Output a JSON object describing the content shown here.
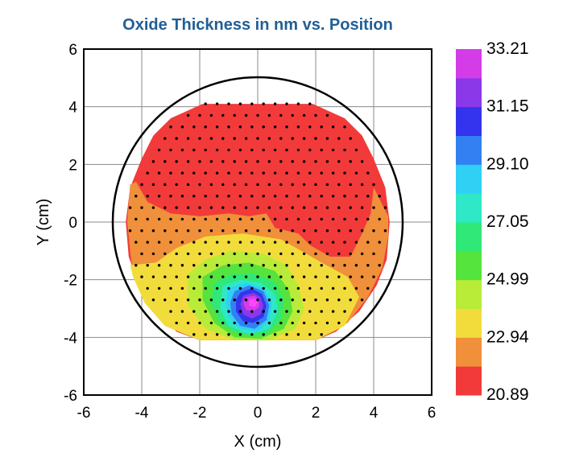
{
  "chart_data": {
    "type": "heatmap",
    "title": "Oxide Thickness in nm vs. Position",
    "xlabel": "X (cm)",
    "ylabel": "Y (cm)",
    "xlim": [
      -6,
      6
    ],
    "ylim": [
      -6,
      6
    ],
    "x_ticks": [
      "-6",
      "-4",
      "-2",
      "0",
      "2",
      "4",
      "6"
    ],
    "y_ticks": [
      "6",
      "4",
      "2",
      "0",
      "-2",
      "-4",
      "-6"
    ],
    "grid": true,
    "wafer_circle_radius": 5,
    "colorbar": {
      "labels": [
        "33.21",
        "31.15",
        "29.10",
        "27.05",
        "24.99",
        "22.94",
        "20.89"
      ],
      "levels": [
        20.89,
        21.92,
        22.94,
        23.97,
        24.99,
        26.02,
        27.05,
        28.07,
        29.1,
        30.12,
        31.15,
        32.18,
        33.21
      ],
      "colors": [
        "#f23a3a",
        "#f0903a",
        "#f2dc3c",
        "#b8ec38",
        "#55e33e",
        "#2fe878",
        "#2ee8c8",
        "#2fd0f4",
        "#3380f2",
        "#3434ee",
        "#8a38e8",
        "#d43ce8"
      ],
      "placement": "right"
    },
    "contours": [
      {
        "level": 21.92,
        "color": "#f0903a",
        "points": [
          [
            -4.5,
            0
          ],
          [
            -4.4,
            -1
          ],
          [
            -4.3,
            -1.8
          ],
          [
            -3.9,
            -2.8
          ],
          [
            -3.2,
            -3.6
          ],
          [
            -2,
            -4.1
          ],
          [
            2,
            -4.1
          ],
          [
            3.1,
            -3.5
          ],
          [
            3.8,
            -2.6
          ],
          [
            4.3,
            -1.6
          ],
          [
            4.5,
            -0.5
          ],
          [
            4.5,
            0.2
          ],
          [
            4.2,
            0.8
          ],
          [
            4.0,
            1.2
          ],
          [
            3.9,
            0.3
          ],
          [
            3.6,
            -0.4
          ],
          [
            3.2,
            -1.2
          ],
          [
            2.5,
            -1.2
          ],
          [
            1.8,
            -0.8
          ],
          [
            1.4,
            -0.4
          ],
          [
            0.6,
            -0.2
          ],
          [
            0.3,
            0.3
          ],
          [
            -0.3,
            0.2
          ],
          [
            -1.0,
            0.3
          ],
          [
            -2.0,
            0.2
          ],
          [
            -3.0,
            0.3
          ],
          [
            -3.8,
            0.7
          ],
          [
            -4.2,
            1.4
          ],
          [
            -4.4,
            1.3
          ]
        ]
      },
      {
        "level": 22.94,
        "color": "#f2dc3c",
        "points": [
          [
            -4.4,
            -1.5
          ],
          [
            -3.5,
            -1.4
          ],
          [
            -2.8,
            -0.9
          ],
          [
            -1.8,
            -0.5
          ],
          [
            -0.5,
            -0.4
          ],
          [
            0.8,
            -0.6
          ],
          [
            1.5,
            -1.0
          ],
          [
            2.2,
            -1.4
          ],
          [
            3.1,
            -1.9
          ],
          [
            3.5,
            -2.6
          ],
          [
            3.0,
            -3.6
          ],
          [
            2.0,
            -4.1
          ],
          [
            -2.0,
            -4.1
          ],
          [
            -3.2,
            -3.6
          ],
          [
            -3.9,
            -2.8
          ],
          [
            -4.3,
            -1.9
          ]
        ]
      },
      {
        "level": 23.97,
        "color": "#b8ec38",
        "points": [
          [
            -2.4,
            -1.8
          ],
          [
            -1.8,
            -1.3
          ],
          [
            -0.9,
            -1.0
          ],
          [
            0.2,
            -1.1
          ],
          [
            1.0,
            -1.5
          ],
          [
            1.4,
            -2.2
          ],
          [
            1.6,
            -3.0
          ],
          [
            1.3,
            -3.7
          ],
          [
            0.4,
            -4.1
          ],
          [
            -0.8,
            -4.1
          ],
          [
            -1.8,
            -3.7
          ],
          [
            -2.4,
            -2.9
          ]
        ]
      },
      {
        "level": 24.99,
        "color": "#55e33e",
        "points": [
          [
            -1.9,
            -1.9
          ],
          [
            -1.2,
            -1.5
          ],
          [
            -0.3,
            -1.4
          ],
          [
            0.6,
            -1.7
          ],
          [
            1.1,
            -2.4
          ],
          [
            1.2,
            -3.1
          ],
          [
            0.9,
            -3.7
          ],
          [
            0.1,
            -4.05
          ],
          [
            -0.8,
            -4.0
          ],
          [
            -1.5,
            -3.5
          ],
          [
            -1.9,
            -2.7
          ]
        ]
      },
      {
        "level": 26.02,
        "color": "#2fe878",
        "points": [
          [
            -1.5,
            -2.1
          ],
          [
            -0.9,
            -1.8
          ],
          [
            -0.1,
            -1.8
          ],
          [
            0.6,
            -2.1
          ],
          [
            0.9,
            -2.7
          ],
          [
            0.8,
            -3.4
          ],
          [
            0.3,
            -3.9
          ],
          [
            -0.6,
            -3.9
          ],
          [
            -1.3,
            -3.5
          ],
          [
            -1.6,
            -2.8
          ]
        ]
      },
      {
        "level": 27.05,
        "color": "#2ee8c8",
        "points": [
          [
            -1.2,
            -2.2
          ],
          [
            -0.6,
            -2.0
          ],
          [
            0.1,
            -2.1
          ],
          [
            0.6,
            -2.5
          ],
          [
            0.7,
            -3.1
          ],
          [
            0.4,
            -3.7
          ],
          [
            -0.3,
            -3.9
          ],
          [
            -1.0,
            -3.6
          ],
          [
            -1.3,
            -3.0
          ]
        ]
      },
      {
        "level": 28.07,
        "color": "#2fd0f4",
        "points": [
          [
            -1.0,
            -2.3
          ],
          [
            -0.4,
            -2.1
          ],
          [
            0.2,
            -2.3
          ],
          [
            0.5,
            -2.8
          ],
          [
            0.4,
            -3.4
          ],
          [
            0.0,
            -3.8
          ],
          [
            -0.6,
            -3.7
          ],
          [
            -1.0,
            -3.3
          ],
          [
            -1.1,
            -2.8
          ]
        ]
      },
      {
        "level": 29.1,
        "color": "#3380f2",
        "points": [
          [
            -0.8,
            -2.4
          ],
          [
            -0.3,
            -2.2
          ],
          [
            0.2,
            -2.4
          ],
          [
            0.4,
            -2.9
          ],
          [
            0.3,
            -3.4
          ],
          [
            -0.1,
            -3.7
          ],
          [
            -0.6,
            -3.6
          ],
          [
            -0.9,
            -3.2
          ],
          [
            -0.95,
            -2.8
          ]
        ]
      },
      {
        "level": 30.12,
        "color": "#3434ee",
        "points": [
          [
            -0.6,
            -2.45
          ],
          [
            -0.2,
            -2.3
          ],
          [
            0.15,
            -2.5
          ],
          [
            0.3,
            -2.9
          ],
          [
            0.2,
            -3.3
          ],
          [
            -0.15,
            -3.5
          ],
          [
            -0.5,
            -3.45
          ],
          [
            -0.75,
            -3.1
          ],
          [
            -0.75,
            -2.7
          ]
        ]
      },
      {
        "level": 31.15,
        "color": "#8a38e8",
        "points": [
          [
            -0.5,
            -2.55
          ],
          [
            -0.15,
            -2.45
          ],
          [
            0.1,
            -2.6
          ],
          [
            0.2,
            -2.9
          ],
          [
            0.1,
            -3.2
          ],
          [
            -0.2,
            -3.35
          ],
          [
            -0.5,
            -3.2
          ],
          [
            -0.6,
            -2.85
          ]
        ]
      },
      {
        "level": 32.18,
        "color": "#d43ce8",
        "points": [
          [
            -0.4,
            -2.6
          ],
          [
            -0.1,
            -2.55
          ],
          [
            0.05,
            -2.7
          ],
          [
            0.05,
            -2.95
          ],
          [
            -0.15,
            -3.1
          ],
          [
            -0.4,
            -3.05
          ],
          [
            -0.5,
            -2.8
          ]
        ]
      },
      {
        "level": 32.7,
        "color": "#ff44ff",
        "points": [
          [
            -0.3,
            -2.7
          ],
          [
            -0.1,
            -2.65
          ],
          [
            0.0,
            -2.8
          ],
          [
            -0.1,
            -2.95
          ],
          [
            -0.3,
            -2.9
          ]
        ]
      }
    ],
    "domain_outline": [
      [
        -1.9,
        4.1
      ],
      [
        1.9,
        4.1
      ],
      [
        3.0,
        3.6
      ],
      [
        3.6,
        3.0
      ],
      [
        4.0,
        2.2
      ],
      [
        4.4,
        1.2
      ],
      [
        4.55,
        0
      ],
      [
        4.45,
        -1.3
      ],
      [
        4.1,
        -2.2
      ],
      [
        3.5,
        -3.1
      ],
      [
        2.7,
        -3.8
      ],
      [
        2.0,
        -4.1
      ],
      [
        -2.0,
        -4.1
      ],
      [
        -2.8,
        -3.8
      ],
      [
        -3.5,
        -3.1
      ],
      [
        -4.1,
        -2.2
      ],
      [
        -4.45,
        -1.2
      ],
      [
        -4.55,
        0
      ],
      [
        -4.4,
        1.2
      ],
      [
        -4.0,
        2.2
      ],
      [
        -3.6,
        3.0
      ],
      [
        -3.0,
        3.6
      ]
    ],
    "sample_grid_spacing": 0.4,
    "sample_radius_limit": 4.5,
    "sample_y_limits": [
      -4.1,
      4.1
    ]
  }
}
